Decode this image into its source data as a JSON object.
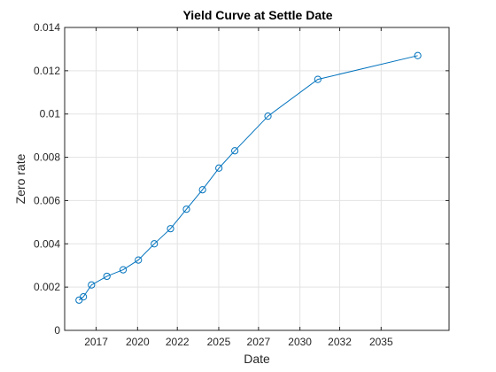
{
  "chart_data": {
    "type": "line",
    "title": "Yield Curve at Settle Date",
    "xlabel": "Date",
    "ylabel": "Zero rate",
    "grid": true,
    "xlim": [
      2015.0,
      2038.2
    ],
    "ylim": [
      0,
      0.014
    ],
    "x_tick_labels": [
      {
        "label": "2017",
        "x": 2016.9
      },
      {
        "label": "2020",
        "x": 2019.4
      },
      {
        "label": "2022",
        "x": 2021.8
      },
      {
        "label": "2025",
        "x": 2024.3
      },
      {
        "label": "2027",
        "x": 2026.7
      },
      {
        "label": "2030",
        "x": 2029.2
      },
      {
        "label": "2032",
        "x": 2031.6
      },
      {
        "label": "2035",
        "x": 2034.1
      }
    ],
    "y_tick_labels": [
      "0",
      "0.002",
      "0.004",
      "0.006",
      "0.008",
      "0.01",
      "0.012",
      "0.014"
    ],
    "y_ticks": [
      0,
      0.002,
      0.004,
      0.006,
      0.008,
      0.01,
      0.012,
      0.014
    ],
    "line_color": "#0072BD",
    "series": [
      {
        "x": [
          2015.87,
          2016.13,
          2016.62,
          2017.55,
          2018.53,
          2019.45,
          2020.41,
          2021.39,
          2022.35,
          2023.32,
          2024.31,
          2025.27,
          2027.27,
          2030.28,
          2036.31
        ],
        "values": [
          0.0014,
          0.00155,
          0.0021,
          0.0025,
          0.0028,
          0.00325,
          0.004,
          0.0047,
          0.0056,
          0.0065,
          0.0075,
          0.0083,
          0.0099,
          0.0116,
          0.0127
        ]
      }
    ]
  }
}
